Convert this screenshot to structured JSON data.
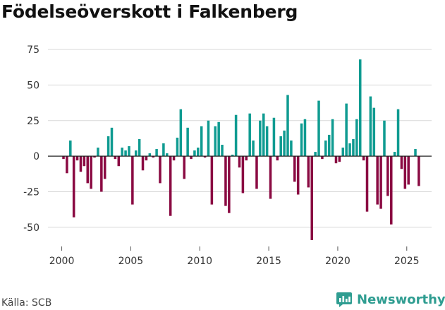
{
  "title": "Födelseöverskott i Falkenberg",
  "source": "Källa: SCB",
  "brand": {
    "name": "Newsworthy",
    "icon": "newsworthy-logo-icon"
  },
  "colors": {
    "positive": "#0f9b91",
    "negative": "#8a0a42",
    "zero_line": "#222222",
    "grid": "#d9d9d9",
    "text": "#333333",
    "brand": "#2f9d91"
  },
  "chart_data": {
    "type": "bar",
    "title": "Födelseöverskott i Falkenberg",
    "xlabel": "",
    "ylabel": "",
    "ylim": [
      -62,
      80
    ],
    "yticks": [
      -50,
      -25,
      0,
      25,
      50,
      75
    ],
    "xticks": [
      2000,
      2005,
      2010,
      2015,
      2020,
      2025
    ],
    "xlim": [
      1999.0,
      2026.8
    ],
    "grid": "horizontal",
    "frequency": "quarterly",
    "series": [
      {
        "name": "Födelseöverskott",
        "x": [
          2000.125,
          2000.375,
          2000.625,
          2000.875,
          2001.125,
          2001.375,
          2001.625,
          2001.875,
          2002.125,
          2002.375,
          2002.625,
          2002.875,
          2003.125,
          2003.375,
          2003.625,
          2003.875,
          2004.125,
          2004.375,
          2004.625,
          2004.875,
          2005.125,
          2005.375,
          2005.625,
          2005.875,
          2006.125,
          2006.375,
          2006.625,
          2006.875,
          2007.125,
          2007.375,
          2007.625,
          2007.875,
          2008.125,
          2008.375,
          2008.625,
          2008.875,
          2009.125,
          2009.375,
          2009.625,
          2009.875,
          2010.125,
          2010.375,
          2010.625,
          2010.875,
          2011.125,
          2011.375,
          2011.625,
          2011.875,
          2012.125,
          2012.375,
          2012.625,
          2012.875,
          2013.125,
          2013.375,
          2013.625,
          2013.875,
          2014.125,
          2014.375,
          2014.625,
          2014.875,
          2015.125,
          2015.375,
          2015.625,
          2015.875,
          2016.125,
          2016.375,
          2016.625,
          2016.875,
          2017.125,
          2017.375,
          2017.625,
          2017.875,
          2018.125,
          2018.375,
          2018.625,
          2018.875,
          2019.125,
          2019.375,
          2019.625,
          2019.875,
          2020.125,
          2020.375,
          2020.625,
          2020.875,
          2021.125,
          2021.375,
          2021.625,
          2021.875,
          2022.125,
          2022.375,
          2022.625,
          2022.875,
          2023.125,
          2023.375,
          2023.625,
          2023.875,
          2024.125,
          2024.375,
          2024.625,
          2024.875,
          2025.125,
          2025.375,
          2025.625,
          2025.875
        ],
        "values": [
          -2,
          -12,
          11,
          -43,
          -3,
          -11,
          -7,
          -19,
          -23,
          -1,
          6,
          -25,
          -16,
          14,
          20,
          -2,
          -7,
          6,
          4,
          7,
          -34,
          4,
          12,
          -10,
          -3,
          2,
          -1,
          5,
          -19,
          9,
          2,
          -42,
          -3,
          13,
          33,
          -16,
          20,
          -2,
          4,
          6,
          21,
          -1,
          25,
          -34,
          21,
          24,
          8,
          -35,
          -40,
          1,
          29,
          -8,
          -26,
          -3,
          30,
          11,
          -23,
          25,
          30,
          21,
          -30,
          27,
          -3,
          14,
          18,
          43,
          11,
          -18,
          -27,
          23,
          26,
          -22,
          -59,
          3,
          39,
          -2,
          11,
          15,
          26,
          -5,
          -4,
          6,
          37,
          9,
          12,
          26,
          68,
          -3,
          -39,
          42,
          34,
          -34,
          -37,
          25,
          -28,
          -48,
          3,
          33,
          -9,
          -23,
          -20,
          0,
          5,
          -21
        ]
      }
    ]
  }
}
